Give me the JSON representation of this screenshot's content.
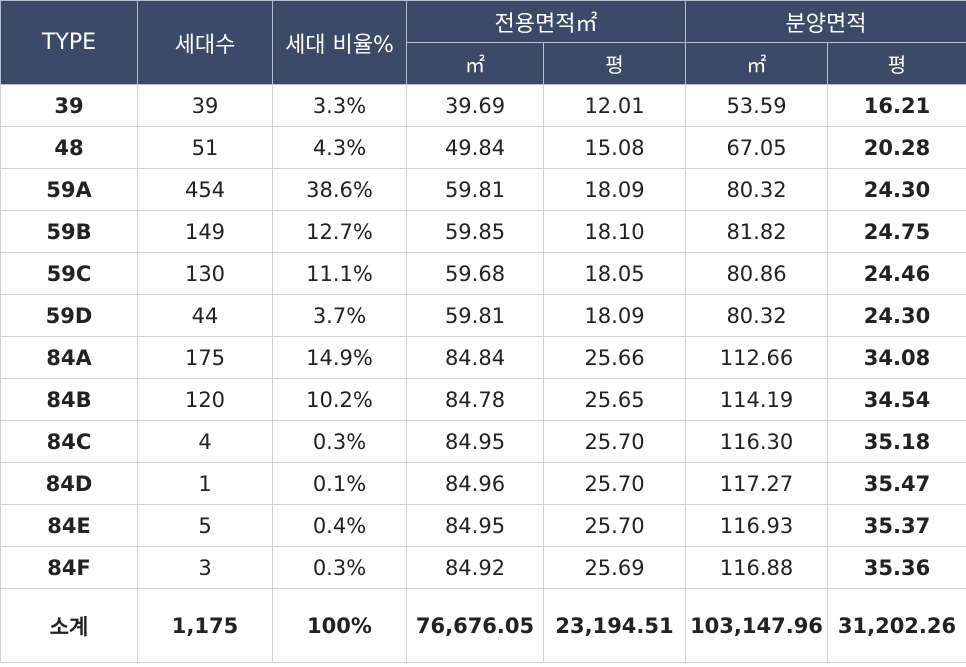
{
  "header": {
    "type": "TYPE",
    "units": "세대수",
    "ratio": "세대 비율%",
    "exclusive": "전용면적㎡",
    "supply": "분양면적",
    "sqm": "㎡",
    "pyeong": "평"
  },
  "rows": [
    {
      "type": "39",
      "units": "39",
      "ratio": "3.3%",
      "ex_m2": "39.69",
      "ex_py": "12.01",
      "sa_m2": "53.59",
      "sa_py": "16.21"
    },
    {
      "type": "48",
      "units": "51",
      "ratio": "4.3%",
      "ex_m2": "49.84",
      "ex_py": "15.08",
      "sa_m2": "67.05",
      "sa_py": "20.28"
    },
    {
      "type": "59A",
      "units": "454",
      "ratio": "38.6%",
      "ex_m2": "59.81",
      "ex_py": "18.09",
      "sa_m2": "80.32",
      "sa_py": "24.30"
    },
    {
      "type": "59B",
      "units": "149",
      "ratio": "12.7%",
      "ex_m2": "59.85",
      "ex_py": "18.10",
      "sa_m2": "81.82",
      "sa_py": "24.75"
    },
    {
      "type": "59C",
      "units": "130",
      "ratio": "11.1%",
      "ex_m2": "59.68",
      "ex_py": "18.05",
      "sa_m2": "80.86",
      "sa_py": "24.46"
    },
    {
      "type": "59D",
      "units": "44",
      "ratio": "3.7%",
      "ex_m2": "59.81",
      "ex_py": "18.09",
      "sa_m2": "80.32",
      "sa_py": "24.30"
    },
    {
      "type": "84A",
      "units": "175",
      "ratio": "14.9%",
      "ex_m2": "84.84",
      "ex_py": "25.66",
      "sa_m2": "112.66",
      "sa_py": "34.08"
    },
    {
      "type": "84B",
      "units": "120",
      "ratio": "10.2%",
      "ex_m2": "84.78",
      "ex_py": "25.65",
      "sa_m2": "114.19",
      "sa_py": "34.54"
    },
    {
      "type": "84C",
      "units": "4",
      "ratio": "0.3%",
      "ex_m2": "84.95",
      "ex_py": "25.70",
      "sa_m2": "116.30",
      "sa_py": "35.18"
    },
    {
      "type": "84D",
      "units": "1",
      "ratio": "0.1%",
      "ex_m2": "84.96",
      "ex_py": "25.70",
      "sa_m2": "117.27",
      "sa_py": "35.47"
    },
    {
      "type": "84E",
      "units": "5",
      "ratio": "0.4%",
      "ex_m2": "84.95",
      "ex_py": "25.70",
      "sa_m2": "116.93",
      "sa_py": "35.37"
    },
    {
      "type": "84F",
      "units": "3",
      "ratio": "0.3%",
      "ex_m2": "84.92",
      "ex_py": "25.69",
      "sa_m2": "116.88",
      "sa_py": "35.36"
    }
  ],
  "total": {
    "type": "소계",
    "units": "1,175",
    "ratio": "100%",
    "ex_m2": "76,676.05",
    "ex_py": "23,194.51",
    "sa_m2": "103,147.96",
    "sa_py": "31,202.26"
  },
  "colors": {
    "header_bg": "#3b4a66",
    "header_text": "#ffffff",
    "grid": "#d2d2d2"
  }
}
